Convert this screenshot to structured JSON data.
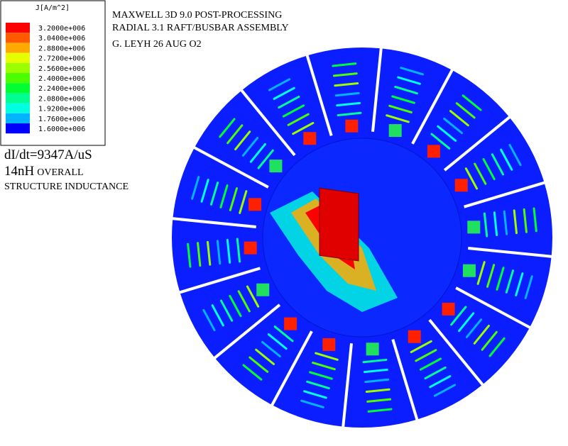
{
  "legend": {
    "title": "J[A/m^2]",
    "entries": [
      {
        "label": "3.2000e+006",
        "color": "#ff0000"
      },
      {
        "label": "3.0400e+006",
        "color": "#ff5a00"
      },
      {
        "label": "2.8800e+006",
        "color": "#ffaa00"
      },
      {
        "label": "2.7200e+006",
        "color": "#e6ff00"
      },
      {
        "label": "2.5600e+006",
        "color": "#9cff00"
      },
      {
        "label": "2.4000e+006",
        "color": "#4cff00"
      },
      {
        "label": "2.2400e+006",
        "color": "#00ff30"
      },
      {
        "label": "2.0800e+006",
        "color": "#00ff90"
      },
      {
        "label": "1.9200e+006",
        "color": "#00ffe0"
      },
      {
        "label": "1.7600e+006",
        "color": "#00b4ff"
      },
      {
        "label": "1.6000e+006",
        "color": "#0000ff"
      }
    ]
  },
  "header": {
    "lines": [
      "MAXWELL 3D 9.0 POST-PROCESSING",
      "RADIAL 3.1 RAFT/BUSBAR ASSEMBLY",
      "G. LEYH  26 AUG O2"
    ]
  },
  "annotations": {
    "rate": "dI/dt=9347A/uS",
    "inductance_value": "14nH",
    "inductance_word": "OVERALL",
    "inductance_desc": "STRUCTURE INDUCTANCE"
  }
}
